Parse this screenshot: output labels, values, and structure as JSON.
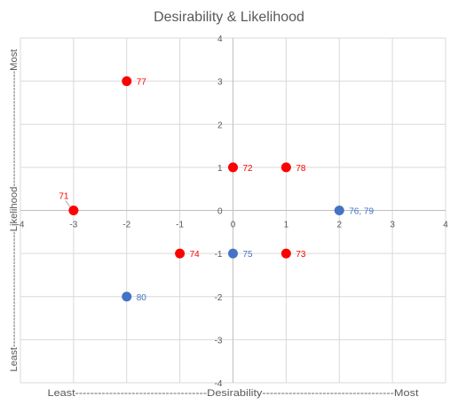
{
  "chart_data": {
    "type": "scatter",
    "title": "Desirability & Likelihood",
    "xlim": [
      -4,
      4
    ],
    "ylim": [
      -4,
      4
    ],
    "x_ticks": [
      "-4",
      "-3",
      "-2",
      "-1",
      "0",
      "1",
      "2",
      "3",
      "4"
    ],
    "y_ticks": [
      "-4",
      "-3",
      "-2",
      "-1",
      "0",
      "1",
      "2",
      "3",
      "4"
    ],
    "grid": true,
    "x_axis_annotation": {
      "low": "Least",
      "mid": "Desirability",
      "high": "Most",
      "text": "Least-----------------------------------Desirability-----------------------------------Most"
    },
    "y_axis_annotation": {
      "low": "Least",
      "mid": "Likelihood",
      "high": "Most",
      "text": "Least-----------------------------------Likelihood-----------------------------------Most"
    },
    "colors": {
      "red": "#ff0000",
      "blue": "#4472c4",
      "grid": "#d9d9d9",
      "text": "#595959"
    },
    "points": [
      {
        "x": -2,
        "y": 3,
        "label": "77",
        "color": "red"
      },
      {
        "x": 0,
        "y": 1,
        "label": "72",
        "color": "red"
      },
      {
        "x": 1,
        "y": 1,
        "label": "78",
        "color": "red"
      },
      {
        "x": -3,
        "y": 0,
        "label": "71",
        "color": "red"
      },
      {
        "x": 2,
        "y": 0,
        "label": "76, 79",
        "color": "blue"
      },
      {
        "x": -1,
        "y": -1,
        "label": "74",
        "color": "red"
      },
      {
        "x": 0,
        "y": -1,
        "label": "75",
        "color": "blue"
      },
      {
        "x": 1,
        "y": -1,
        "label": "73",
        "color": "red"
      },
      {
        "x": -2,
        "y": -2,
        "label": "80",
        "color": "blue"
      }
    ]
  }
}
